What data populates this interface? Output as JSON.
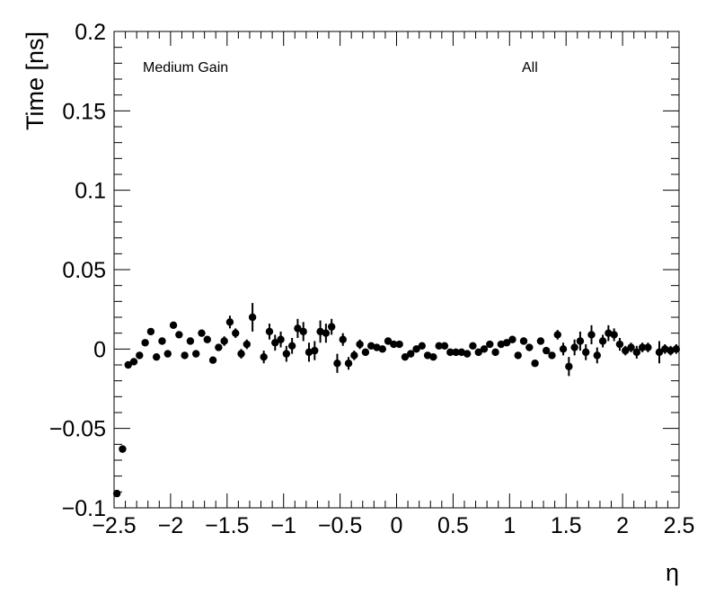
{
  "chart_data": {
    "type": "scatter",
    "xlabel": "η",
    "ylabel": "Time [ns]",
    "xlim": [
      -2.5,
      2.5
    ],
    "ylim": [
      -0.1,
      0.2
    ],
    "x_ticks": [
      "−2.5",
      "−2",
      "−1.5",
      "−1",
      "−0.5",
      "0",
      "0.5",
      "1",
      "1.5",
      "2",
      "2.5"
    ],
    "y_ticks": [
      "−0.1",
      "−0.05",
      "0",
      "0.05",
      "0.1",
      "0.15",
      "0.2"
    ],
    "annotations": [
      "Medium Gain",
      "All"
    ],
    "grid": false,
    "marker_color": "#000000",
    "series": [
      {
        "points": [
          {
            "x": -2.475,
            "y": -0.091,
            "err": 0.001
          },
          {
            "x": -2.425,
            "y": -0.063,
            "err": 0.002
          },
          {
            "x": -2.375,
            "y": -0.01,
            "err": 0.002
          },
          {
            "x": -2.325,
            "y": -0.008,
            "err": 0.002
          },
          {
            "x": -2.275,
            "y": -0.004,
            "err": 0.002
          },
          {
            "x": -2.225,
            "y": 0.004,
            "err": 0.002
          },
          {
            "x": -2.175,
            "y": 0.011,
            "err": 0.002
          },
          {
            "x": -2.125,
            "y": -0.005,
            "err": 0.002
          },
          {
            "x": -2.075,
            "y": 0.005,
            "err": 0.002
          },
          {
            "x": -2.025,
            "y": -0.003,
            "err": 0.002
          },
          {
            "x": -1.975,
            "y": 0.015,
            "err": 0.002
          },
          {
            "x": -1.925,
            "y": 0.009,
            "err": 0.002
          },
          {
            "x": -1.875,
            "y": -0.004,
            "err": 0.002
          },
          {
            "x": -1.825,
            "y": 0.005,
            "err": 0.002
          },
          {
            "x": -1.775,
            "y": -0.003,
            "err": 0.002
          },
          {
            "x": -1.725,
            "y": 0.01,
            "err": 0.002
          },
          {
            "x": -1.675,
            "y": 0.006,
            "err": 0.002
          },
          {
            "x": -1.625,
            "y": -0.007,
            "err": 0.002
          },
          {
            "x": -1.575,
            "y": 0.001,
            "err": 0.002
          },
          {
            "x": -1.525,
            "y": 0.005,
            "err": 0.003
          },
          {
            "x": -1.475,
            "y": 0.017,
            "err": 0.004
          },
          {
            "x": -1.425,
            "y": 0.01,
            "err": 0.003
          },
          {
            "x": -1.375,
            "y": -0.003,
            "err": 0.003
          },
          {
            "x": -1.325,
            "y": 0.003,
            "err": 0.003
          },
          {
            "x": -1.275,
            "y": 0.02,
            "err": 0.009
          },
          {
            "x": -1.175,
            "y": -0.005,
            "err": 0.004
          },
          {
            "x": -1.125,
            "y": 0.011,
            "err": 0.005
          },
          {
            "x": -1.075,
            "y": 0.004,
            "err": 0.005
          },
          {
            "x": -1.025,
            "y": 0.006,
            "err": 0.005
          },
          {
            "x": -0.975,
            "y": -0.003,
            "err": 0.005
          },
          {
            "x": -0.925,
            "y": 0.002,
            "err": 0.005
          },
          {
            "x": -0.875,
            "y": 0.013,
            "err": 0.006
          },
          {
            "x": -0.825,
            "y": 0.011,
            "err": 0.006
          },
          {
            "x": -0.775,
            "y": -0.002,
            "err": 0.006
          },
          {
            "x": -0.725,
            "y": -0.001,
            "err": 0.006
          },
          {
            "x": -0.675,
            "y": 0.011,
            "err": 0.007
          },
          {
            "x": -0.625,
            "y": 0.01,
            "err": 0.006
          },
          {
            "x": -0.575,
            "y": 0.014,
            "err": 0.005
          },
          {
            "x": -0.525,
            "y": -0.009,
            "err": 0.006
          },
          {
            "x": -0.475,
            "y": 0.006,
            "err": 0.004
          },
          {
            "x": -0.425,
            "y": -0.009,
            "err": 0.004
          },
          {
            "x": -0.375,
            "y": -0.004,
            "err": 0.003
          },
          {
            "x": -0.325,
            "y": 0.003,
            "err": 0.003
          },
          {
            "x": -0.275,
            "y": -0.002,
            "err": 0.002
          },
          {
            "x": -0.225,
            "y": 0.002,
            "err": 0.002
          },
          {
            "x": -0.175,
            "y": 0.001,
            "err": 0.002
          },
          {
            "x": -0.125,
            "y": 0.0,
            "err": 0.002
          },
          {
            "x": -0.075,
            "y": 0.005,
            "err": 0.002
          },
          {
            "x": -0.025,
            "y": 0.003,
            "err": 0.002
          },
          {
            "x": 0.025,
            "y": 0.003,
            "err": 0.002
          },
          {
            "x": 0.075,
            "y": -0.005,
            "err": 0.002
          },
          {
            "x": 0.125,
            "y": -0.003,
            "err": 0.002
          },
          {
            "x": 0.175,
            "y": 0.0,
            "err": 0.002
          },
          {
            "x": 0.225,
            "y": 0.002,
            "err": 0.002
          },
          {
            "x": 0.275,
            "y": -0.004,
            "err": 0.002
          },
          {
            "x": 0.325,
            "y": -0.005,
            "err": 0.002
          },
          {
            "x": 0.375,
            "y": 0.002,
            "err": 0.002
          },
          {
            "x": 0.425,
            "y": 0.002,
            "err": 0.002
          },
          {
            "x": 0.475,
            "y": -0.002,
            "err": 0.002
          },
          {
            "x": 0.525,
            "y": -0.002,
            "err": 0.002
          },
          {
            "x": 0.575,
            "y": -0.002,
            "err": 0.002
          },
          {
            "x": 0.625,
            "y": -0.003,
            "err": 0.002
          },
          {
            "x": 0.675,
            "y": 0.002,
            "err": 0.002
          },
          {
            "x": 0.725,
            "y": -0.002,
            "err": 0.002
          },
          {
            "x": 0.775,
            "y": 0.0,
            "err": 0.002
          },
          {
            "x": 0.825,
            "y": 0.003,
            "err": 0.002
          },
          {
            "x": 0.875,
            "y": -0.002,
            "err": 0.002
          },
          {
            "x": 0.925,
            "y": 0.003,
            "err": 0.002
          },
          {
            "x": 0.975,
            "y": 0.004,
            "err": 0.002
          },
          {
            "x": 1.025,
            "y": 0.006,
            "err": 0.002
          },
          {
            "x": 1.075,
            "y": -0.004,
            "err": 0.002
          },
          {
            "x": 1.125,
            "y": 0.005,
            "err": 0.002
          },
          {
            "x": 1.175,
            "y": 0.001,
            "err": 0.002
          },
          {
            "x": 1.225,
            "y": -0.009,
            "err": 0.002
          },
          {
            "x": 1.275,
            "y": 0.005,
            "err": 0.002
          },
          {
            "x": 1.325,
            "y": -0.001,
            "err": 0.002
          },
          {
            "x": 1.375,
            "y": -0.004,
            "err": 0.002
          },
          {
            "x": 1.425,
            "y": 0.009,
            "err": 0.003
          },
          {
            "x": 1.475,
            "y": 0.0,
            "err": 0.004
          },
          {
            "x": 1.525,
            "y": -0.011,
            "err": 0.006
          },
          {
            "x": 1.575,
            "y": 0.001,
            "err": 0.005
          },
          {
            "x": 1.625,
            "y": 0.005,
            "err": 0.006
          },
          {
            "x": 1.675,
            "y": -0.002,
            "err": 0.005
          },
          {
            "x": 1.725,
            "y": 0.009,
            "err": 0.006
          },
          {
            "x": 1.775,
            "y": -0.004,
            "err": 0.005
          },
          {
            "x": 1.825,
            "y": 0.005,
            "err": 0.004
          },
          {
            "x": 1.875,
            "y": 0.01,
            "err": 0.005
          },
          {
            "x": 1.925,
            "y": 0.009,
            "err": 0.004
          },
          {
            "x": 1.975,
            "y": 0.003,
            "err": 0.004
          },
          {
            "x": 2.025,
            "y": -0.001,
            "err": 0.003
          },
          {
            "x": 2.075,
            "y": 0.001,
            "err": 0.003
          },
          {
            "x": 2.125,
            "y": -0.002,
            "err": 0.004
          },
          {
            "x": 2.175,
            "y": 0.001,
            "err": 0.003
          },
          {
            "x": 2.225,
            "y": 0.001,
            "err": 0.003
          },
          {
            "x": 2.325,
            "y": -0.002,
            "err": 0.007
          },
          {
            "x": 2.375,
            "y": 0.0,
            "err": 0.003
          },
          {
            "x": 2.425,
            "y": -0.001,
            "err": 0.003
          },
          {
            "x": 2.475,
            "y": 0.0,
            "err": 0.003
          }
        ]
      }
    ]
  }
}
